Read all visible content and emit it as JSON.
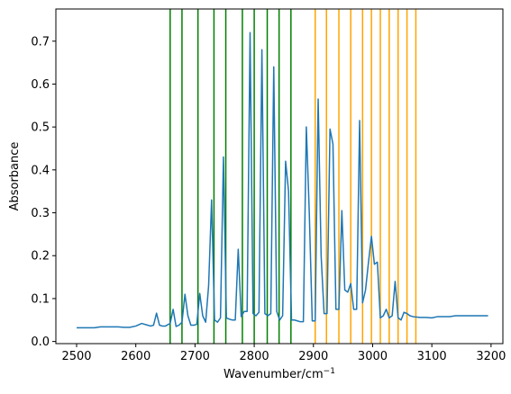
{
  "chart_data": {
    "type": "line",
    "xlabel": "Wavenumber/cm",
    "xlabel_superscript": "−1",
    "ylabel": "Absorbance",
    "xlim": [
      2465,
      3220
    ],
    "ylim": [
      -0.005,
      0.775
    ],
    "x_ticks": [
      2500,
      2600,
      2700,
      2800,
      2900,
      3000,
      3100,
      3200
    ],
    "y_ticks": [
      0.0,
      0.1,
      0.2,
      0.3,
      0.4,
      0.5,
      0.6,
      0.7
    ],
    "x_tick_labels": [
      "2500",
      "2600",
      "2700",
      "2800",
      "2900",
      "3000",
      "3100",
      "3200"
    ],
    "y_tick_labels": [
      "0.0",
      "0.1",
      "0.2",
      "0.3",
      "0.4",
      "0.5",
      "0.6",
      "0.7"
    ],
    "grid": false,
    "series": [
      {
        "color": "#1f77b4",
        "x": [
          2500,
          2510,
          2520,
          2530,
          2540,
          2550,
          2560,
          2570,
          2580,
          2590,
          2600,
          2610,
          2620,
          2625,
          2630,
          2635,
          2640,
          2645,
          2650,
          2658,
          2663,
          2668,
          2673,
          2678,
          2683,
          2688,
          2693,
          2698,
          2703,
          2708,
          2713,
          2718,
          2723,
          2728,
          2733,
          2738,
          2743,
          2748,
          2753,
          2758,
          2763,
          2768,
          2773,
          2778,
          2783,
          2788,
          2793,
          2798,
          2803,
          2808,
          2813,
          2818,
          2823,
          2828,
          2833,
          2838,
          2843,
          2848,
          2853,
          2858,
          2863,
          2868,
          2873,
          2878,
          2883,
          2888,
          2893,
          2898,
          2903,
          2908,
          2913,
          2918,
          2923,
          2928,
          2933,
          2938,
          2943,
          2948,
          2953,
          2958,
          2963,
          2968,
          2973,
          2978,
          2983,
          2988,
          2993,
          2998,
          3003,
          3008,
          3013,
          3018,
          3023,
          3028,
          3033,
          3038,
          3043,
          3048,
          3053,
          3058,
          3063,
          3068,
          3073,
          3080,
          3090,
          3100,
          3110,
          3120,
          3130,
          3140,
          3150,
          3160,
          3170,
          3180,
          3195
        ],
        "y": [
          0.032,
          0.032,
          0.032,
          0.032,
          0.034,
          0.034,
          0.034,
          0.034,
          0.033,
          0.033,
          0.036,
          0.042,
          0.038,
          0.036,
          0.038,
          0.066,
          0.038,
          0.036,
          0.036,
          0.042,
          0.075,
          0.035,
          0.038,
          0.045,
          0.11,
          0.06,
          0.038,
          0.038,
          0.04,
          0.112,
          0.06,
          0.045,
          0.13,
          0.33,
          0.05,
          0.045,
          0.055,
          0.43,
          0.055,
          0.052,
          0.05,
          0.05,
          0.215,
          0.058,
          0.07,
          0.07,
          0.72,
          0.065,
          0.06,
          0.068,
          0.68,
          0.065,
          0.06,
          0.065,
          0.64,
          0.07,
          0.05,
          0.06,
          0.42,
          0.35,
          0.05,
          0.05,
          0.048,
          0.046,
          0.046,
          0.5,
          0.3,
          0.048,
          0.048,
          0.565,
          0.2,
          0.065,
          0.065,
          0.495,
          0.46,
          0.075,
          0.075,
          0.305,
          0.12,
          0.115,
          0.135,
          0.075,
          0.075,
          0.515,
          0.09,
          0.12,
          0.185,
          0.245,
          0.18,
          0.185,
          0.055,
          0.06,
          0.075,
          0.055,
          0.06,
          0.14,
          0.055,
          0.05,
          0.068,
          0.065,
          0.06,
          0.058,
          0.057,
          0.056,
          0.056,
          0.055,
          0.058,
          0.058,
          0.058,
          0.06,
          0.06,
          0.06,
          0.06,
          0.06,
          0.06
        ]
      }
    ],
    "vertical_lines": [
      {
        "color": "#008000",
        "x": [
          2658,
          2678,
          2705,
          2732,
          2752,
          2780,
          2800,
          2822,
          2842,
          2862
        ]
      },
      {
        "color": "#ffa500",
        "x": [
          2903,
          2922,
          2943,
          2963,
          2983,
          2998,
          3013,
          3028,
          3043,
          3058,
          3073
        ]
      }
    ]
  }
}
